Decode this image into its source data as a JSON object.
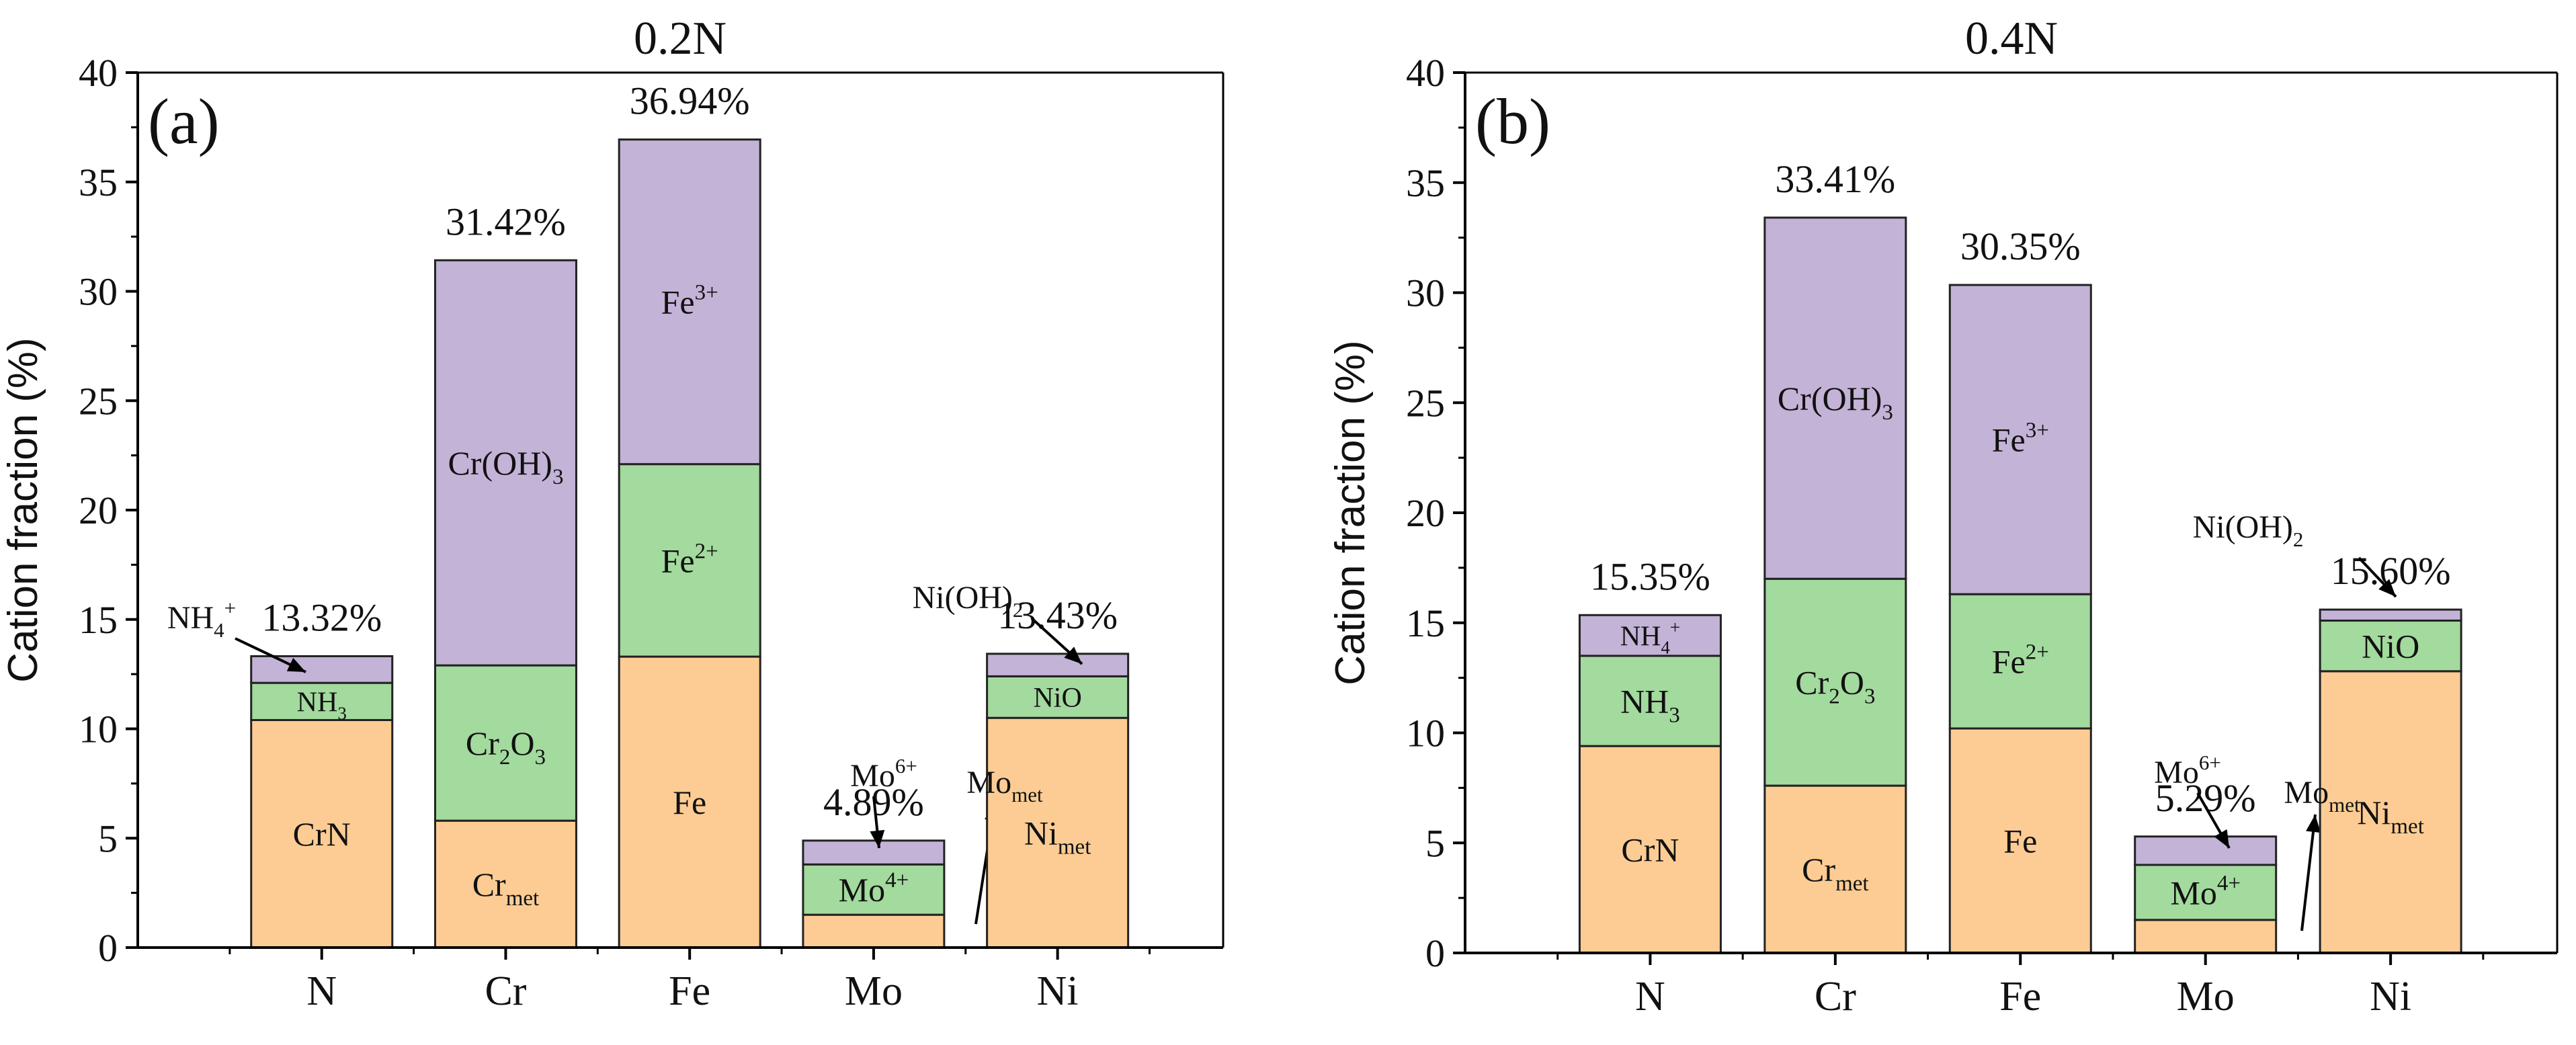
{
  "chart_data": [
    {
      "type": "bar",
      "stacked": true,
      "title": "0.2N",
      "panel_label": "(a)",
      "ylabel": "Cation fraction (%)",
      "xlabel": "",
      "ylim": [
        0,
        40
      ],
      "yticks": [
        "0",
        "5",
        "10",
        "15",
        "20",
        "25",
        "30",
        "35",
        "40"
      ],
      "grid": false,
      "categories": [
        "N",
        "Cr",
        "Fe",
        "Mo",
        "Ni"
      ],
      "totals": [
        13.32,
        31.42,
        36.94,
        4.89,
        13.43
      ],
      "total_labels": [
        "13.32%",
        "31.42%",
        "36.94%",
        "4.89%",
        "13.43%"
      ],
      "bars": [
        {
          "segments": [
            {
              "value": 10.4,
              "color": "#FCCC94",
              "label": "CrN",
              "sub": "",
              "sup": ""
            },
            {
              "value": 1.7,
              "color": "#A3DA9E",
              "label": "NH",
              "sub": "3",
              "sup": ""
            },
            {
              "value": 1.22,
              "color": "#C3B3D7",
              "label": "",
              "sub": "",
              "sup": ""
            }
          ],
          "callouts": [
            {
              "label": "NH",
              "sub": "4",
              "sup": "+"
            }
          ]
        },
        {
          "segments": [
            {
              "value": 5.8,
              "color": "#FCCC94",
              "label": "Cr",
              "sub": "met",
              "sup": ""
            },
            {
              "value": 7.1,
              "color": "#A3DA9E",
              "label": "Cr",
              "sub": "2",
              "label2": "O",
              "sub2": "3",
              "sup": ""
            },
            {
              "value": 18.52,
              "color": "#C3B3D7",
              "label": "Cr(OH)",
              "sub": "3",
              "sup": ""
            }
          ],
          "callouts": []
        },
        {
          "segments": [
            {
              "value": 13.3,
              "color": "#FCCC94",
              "label": "Fe",
              "sub": "",
              "sup": ""
            },
            {
              "value": 8.8,
              "color": "#A3DA9E",
              "label": "Fe",
              "sub": "",
              "sup": "2+"
            },
            {
              "value": 14.84,
              "color": "#C3B3D7",
              "label": "Fe",
              "sub": "",
              "sup": "3+"
            }
          ],
          "callouts": []
        },
        {
          "segments": [
            {
              "value": 1.5,
              "color": "#FCCC94",
              "label": "",
              "sub": "",
              "sup": ""
            },
            {
              "value": 2.3,
              "color": "#A3DA9E",
              "label": "Mo",
              "sub": "",
              "sup": "4+"
            },
            {
              "value": 1.09,
              "color": "#C3B3D7",
              "label": "",
              "sub": "",
              "sup": ""
            }
          ],
          "callouts": [
            {
              "label": "Mo",
              "sub": "",
              "sup": "6+"
            },
            {
              "label": "Mo",
              "sub": "met",
              "sup": ""
            }
          ]
        },
        {
          "segments": [
            {
              "value": 10.5,
              "color": "#FCCC94",
              "label": "Ni",
              "sub": "met",
              "sup": ""
            },
            {
              "value": 1.9,
              "color": "#A3DA9E",
              "label": "NiO",
              "sub": "",
              "sup": ""
            },
            {
              "value": 1.03,
              "color": "#C3B3D7",
              "label": "",
              "sub": "",
              "sup": ""
            }
          ],
          "callouts": [
            {
              "label": "Ni(OH)",
              "sub": "2",
              "sup": ""
            }
          ]
        }
      ]
    },
    {
      "type": "bar",
      "stacked": true,
      "title": "0.4N",
      "panel_label": "(b)",
      "ylabel": "Cation fraction (%)",
      "xlabel": "",
      "ylim": [
        0,
        40
      ],
      "yticks": [
        "0",
        "5",
        "10",
        "15",
        "20",
        "25",
        "30",
        "35",
        "40"
      ],
      "grid": false,
      "categories": [
        "N",
        "Cr",
        "Fe",
        "Mo",
        "Ni"
      ],
      "totals": [
        15.35,
        33.41,
        30.35,
        5.29,
        15.6
      ],
      "total_labels": [
        "15.35%",
        "33.41%",
        "30.35%",
        "5.29%",
        "15.60%"
      ],
      "bars": [
        {
          "segments": [
            {
              "value": 9.4,
              "color": "#FCCC94",
              "label": "CrN",
              "sub": "",
              "sup": ""
            },
            {
              "value": 4.1,
              "color": "#A3DA9E",
              "label": "NH",
              "sub": "3",
              "sup": ""
            },
            {
              "value": 1.85,
              "color": "#C3B3D7",
              "label": "NH",
              "sub": "4",
              "sup": "+"
            }
          ],
          "callouts": []
        },
        {
          "segments": [
            {
              "value": 7.6,
              "color": "#FCCC94",
              "label": "Cr",
              "sub": "met",
              "sup": ""
            },
            {
              "value": 9.4,
              "color": "#A3DA9E",
              "label": "Cr",
              "sub": "2",
              "label2": "O",
              "sub2": "3",
              "sup": ""
            },
            {
              "value": 16.41,
              "color": "#C3B3D7",
              "label": "Cr(OH)",
              "sub": "3",
              "sup": ""
            }
          ],
          "callouts": []
        },
        {
          "segments": [
            {
              "value": 10.2,
              "color": "#FCCC94",
              "label": "Fe",
              "sub": "",
              "sup": ""
            },
            {
              "value": 6.1,
              "color": "#A3DA9E",
              "label": "Fe",
              "sub": "",
              "sup": "2+"
            },
            {
              "value": 14.05,
              "color": "#C3B3D7",
              "label": "Fe",
              "sub": "",
              "sup": "3+"
            }
          ],
          "callouts": []
        },
        {
          "segments": [
            {
              "value": 1.5,
              "color": "#FCCC94",
              "label": "",
              "sub": "",
              "sup": ""
            },
            {
              "value": 2.5,
              "color": "#A3DA9E",
              "label": "Mo",
              "sub": "",
              "sup": "4+"
            },
            {
              "value": 1.29,
              "color": "#C3B3D7",
              "label": "",
              "sub": "",
              "sup": ""
            }
          ],
          "callouts": [
            {
              "label": "Mo",
              "sub": "",
              "sup": "6+"
            },
            {
              "label": "Mo",
              "sub": "met",
              "sup": ""
            }
          ]
        },
        {
          "segments": [
            {
              "value": 12.8,
              "color": "#FCCC94",
              "label": "Ni",
              "sub": "met",
              "sup": ""
            },
            {
              "value": 2.3,
              "color": "#A3DA9E",
              "label": "NiO",
              "sub": "",
              "sup": ""
            },
            {
              "value": 0.5,
              "color": "#C3B3D7",
              "label": "",
              "sub": "",
              "sup": ""
            }
          ],
          "callouts": [
            {
              "label": "Ni(OH)",
              "sub": "2",
              "sup": ""
            }
          ]
        }
      ]
    }
  ]
}
